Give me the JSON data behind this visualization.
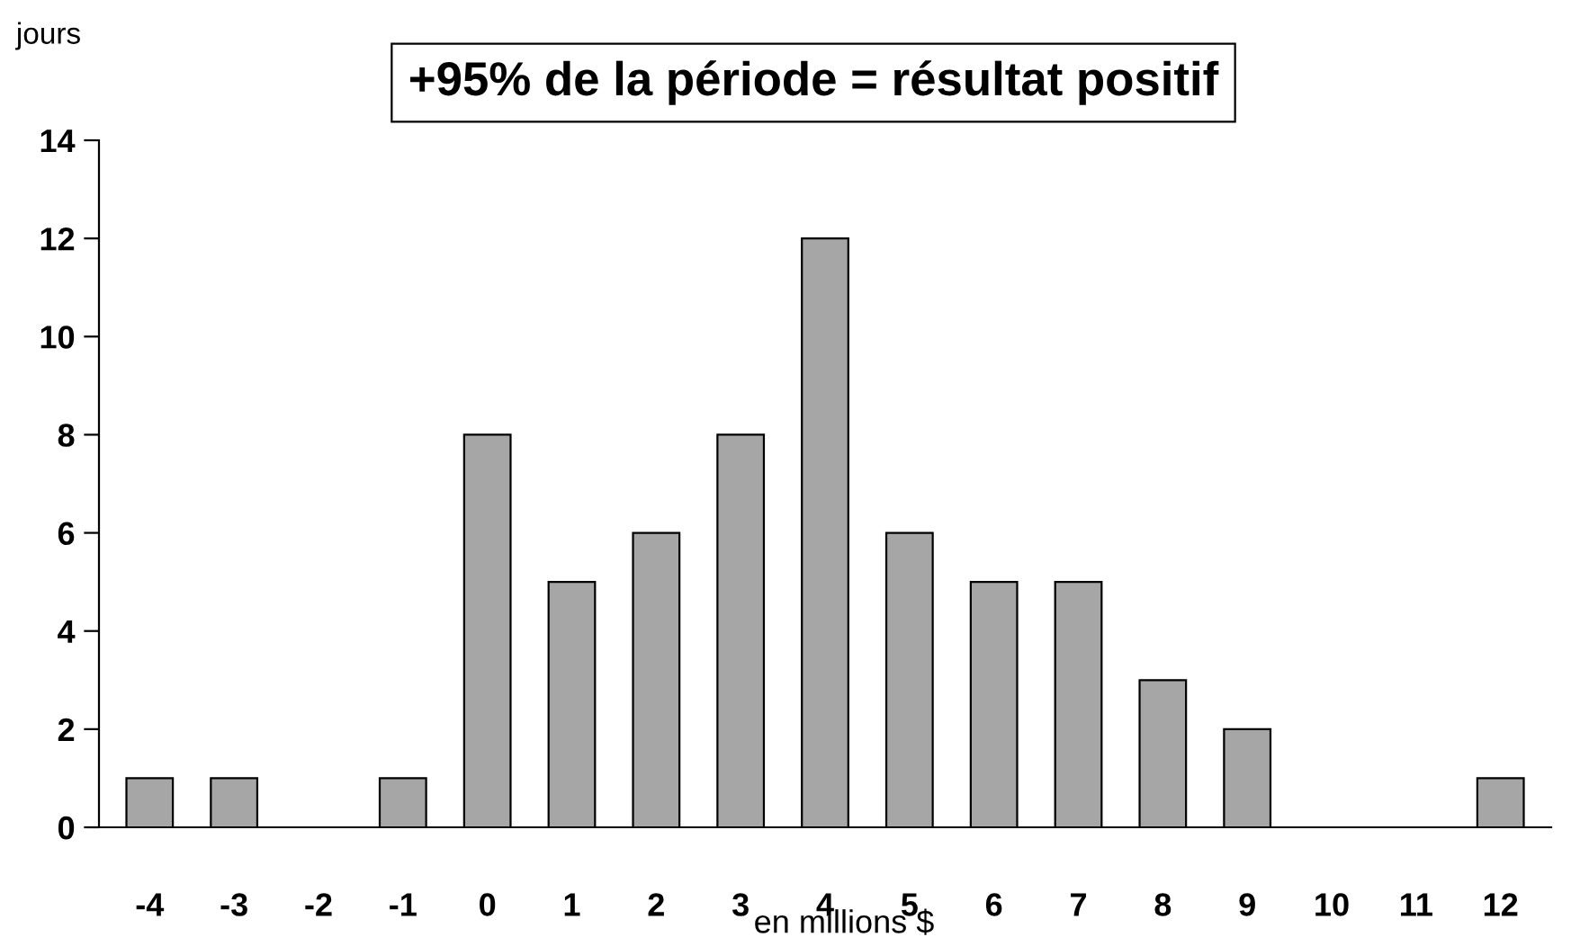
{
  "chart_data": {
    "type": "bar",
    "title": "+95% de la période = résultat positif",
    "xlabel": "en millions $",
    "ylabel": "jours",
    "categories": [
      "-4",
      "-3",
      "-2",
      "-1",
      "0",
      "1",
      "2",
      "3",
      "4",
      "5",
      "6",
      "7",
      "8",
      "9",
      "10",
      "11",
      "12"
    ],
    "values": [
      1,
      1,
      0,
      1,
      8,
      5,
      6,
      8,
      12,
      6,
      5,
      5,
      3,
      2,
      0,
      0,
      1
    ],
    "color": "#a6a6a6",
    "ylim": [
      0,
      14
    ],
    "yticks": [
      0,
      2,
      4,
      6,
      8,
      10,
      12,
      14
    ],
    "grid": false,
    "legend": false
  }
}
